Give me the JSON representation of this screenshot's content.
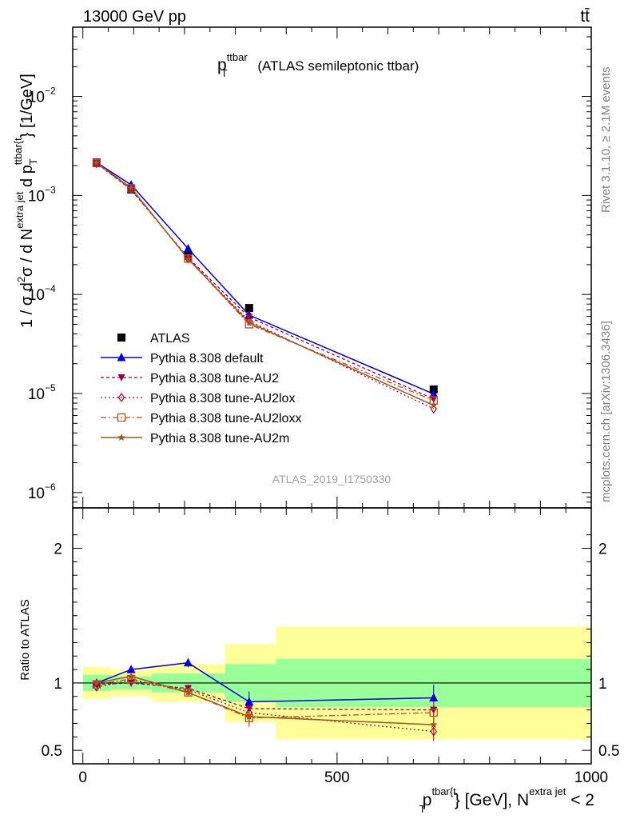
{
  "header": {
    "left": "13000 GeV pp",
    "right": "tt̄"
  },
  "side": {
    "top": "Rivet 3.1.10, ≥ 2.1M events",
    "bottom": "mcplots.cern.ch [arXiv:1306.3436]"
  },
  "main_title": {
    "base": "p",
    "sup": "ttbar",
    "sub": "T",
    "rest": " (ATLAS semileptonic ttbar)"
  },
  "analysis_label": "ATLAS_2019_I1750330",
  "ylabel_main": {
    "p1": "1 / σ d",
    "sup1": "2",
    "p2": "σ / d N",
    "sup2": "extra jet",
    "p3": " d p",
    "sub3": "T",
    "sup3": "ttbar{t",
    "p4": "} [1/GeV]"
  },
  "ylabel_ratio": "Ratio to ATLAS",
  "xlabel": {
    "p1": "p",
    "sup1": "tbar{t",
    "sub1": "T",
    "p2": "} [GeV], N",
    "sup2": "extra jet",
    "p3": " < 2"
  },
  "colors": {
    "data": "#000000",
    "default": "#0000dd",
    "au2": "#99004c",
    "au2lox": "#b00030",
    "au2loxx": "#c84a1c",
    "au2m": "#a0561a",
    "band_inner": "#99ff99",
    "band_outer": "#ffff99"
  },
  "chart_data": [
    {
      "type": "line",
      "panel": "main",
      "yscale": "log",
      "xlim": [
        -20,
        1000
      ],
      "ylim": [
        7e-07,
        0.05
      ],
      "yticks": [
        {
          "value": 1e-06,
          "base": "10",
          "exp": "−6"
        },
        {
          "value": 1e-05,
          "base": "10",
          "exp": "−5"
        },
        {
          "value": 0.0001,
          "base": "10",
          "exp": "−4"
        },
        {
          "value": 0.001,
          "base": "10",
          "exp": "−3"
        },
        {
          "value": 0.01,
          "base": "10",
          "exp": "−2"
        }
      ],
      "x": [
        27,
        95,
        207,
        327,
        690
      ],
      "series": [
        {
          "name": "ATLAS",
          "key": "data",
          "values": [
            0.00215,
            0.00115,
            0.000245,
            7.3e-05,
            1.1e-05
          ]
        },
        {
          "name": "Pythia 8.308 default",
          "key": "default",
          "values": [
            0.00215,
            0.00128,
            0.00029,
            6.2e-05,
            9.9e-06
          ]
        },
        {
          "name": "Pythia 8.308 tune-AU2",
          "key": "au2",
          "values": [
            0.00212,
            0.00114,
            0.000235,
            5.9e-05,
            8.8e-06
          ]
        },
        {
          "name": "Pythia 8.308 tune-AU2lox",
          "key": "au2lox",
          "values": [
            0.0021,
            0.00116,
            0.00023,
            5.4e-05,
            7e-06
          ]
        },
        {
          "name": "Pythia 8.308 tune-AU2loxx",
          "key": "au2loxx",
          "values": [
            0.00212,
            0.00118,
            0.00023,
            5e-05,
            8.5e-06
          ]
        },
        {
          "name": "Pythia 8.308 tune-AU2m",
          "key": "au2m",
          "values": [
            0.00214,
            0.00119,
            0.000228,
            5.2e-05,
            7.6e-06
          ]
        }
      ]
    },
    {
      "type": "line",
      "panel": "ratio",
      "xlim": [
        -20,
        1000
      ],
      "ylim": [
        0.4,
        2.3
      ],
      "yticks": [
        0.5,
        1,
        2
      ],
      "xticks": [
        0,
        500,
        1000
      ],
      "bins": [
        [
          0,
          55
        ],
        [
          55,
          135
        ],
        [
          135,
          280
        ],
        [
          280,
          380
        ],
        [
          380,
          1000
        ]
      ],
      "band_inner": [
        [
          0.94,
          1.06
        ],
        [
          0.95,
          1.05
        ],
        [
          0.93,
          1.07
        ],
        [
          0.86,
          1.14
        ],
        [
          0.82,
          1.18
        ]
      ],
      "band_outer": [
        [
          0.88,
          1.12
        ],
        [
          0.9,
          1.1
        ],
        [
          0.86,
          1.14
        ],
        [
          0.71,
          1.29
        ],
        [
          0.58,
          1.42
        ]
      ],
      "x": [
        27,
        95,
        207,
        327,
        690
      ],
      "series": [
        {
          "name": "Pythia 8.308 default",
          "key": "default",
          "values": [
            1.0,
            1.1,
            1.15,
            0.86,
            0.89
          ]
        },
        {
          "name": "Pythia 8.308 tune-AU2",
          "key": "au2",
          "values": [
            0.99,
            1.0,
            0.96,
            0.81,
            0.8
          ]
        },
        {
          "name": "Pythia 8.308 tune-AU2lox",
          "key": "au2lox",
          "values": [
            0.97,
            1.02,
            0.95,
            0.78,
            0.64
          ]
        },
        {
          "name": "Pythia 8.308 tune-AU2loxx",
          "key": "au2loxx",
          "values": [
            0.99,
            1.03,
            0.93,
            0.74,
            0.78
          ]
        },
        {
          "name": "Pythia 8.308 tune-AU2m",
          "key": "au2m",
          "values": [
            1.0,
            1.05,
            0.93,
            0.75,
            0.69
          ]
        }
      ]
    }
  ]
}
